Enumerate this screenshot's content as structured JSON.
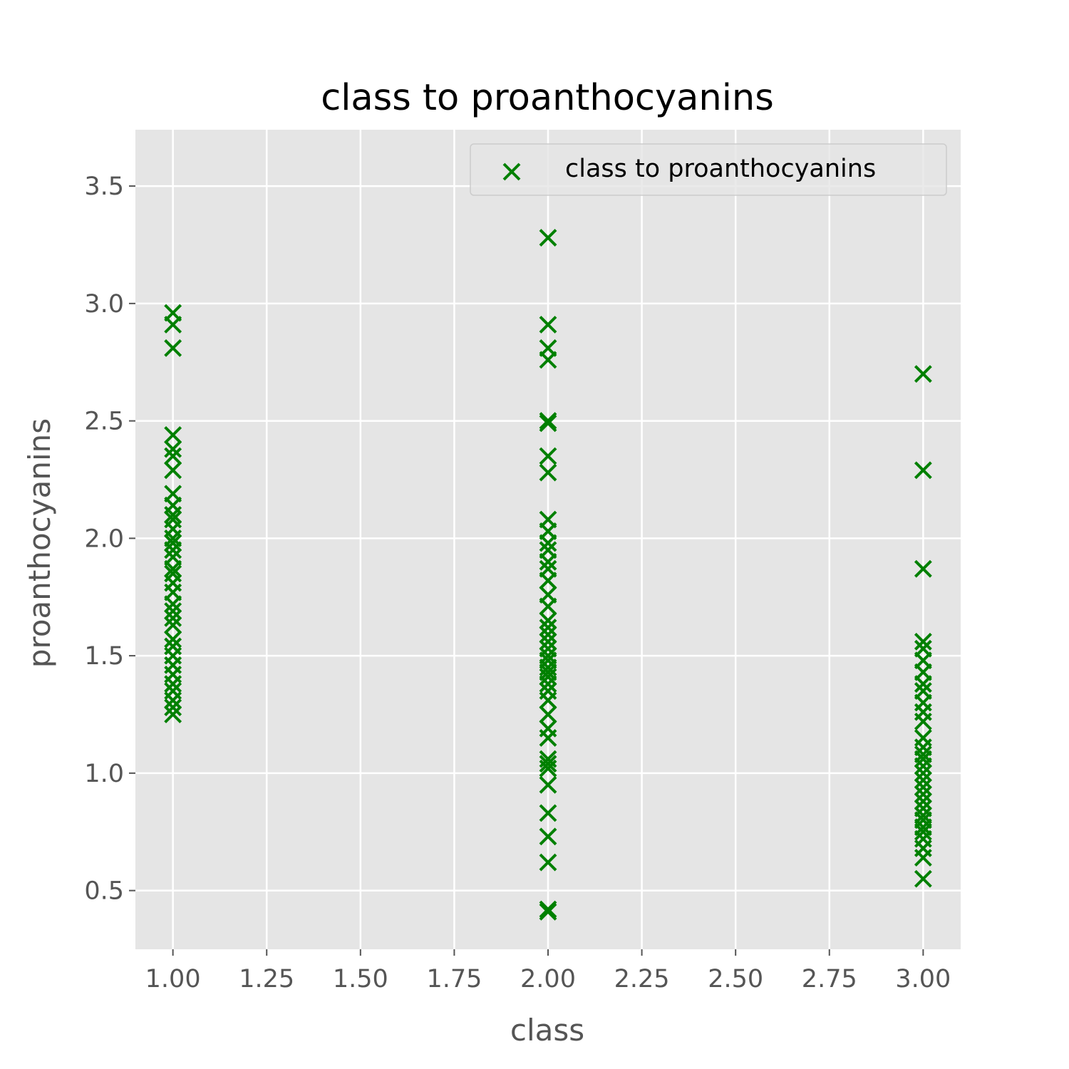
{
  "chart_data": {
    "type": "scatter",
    "title": "class to proanthocyanins",
    "xlabel": "class",
    "ylabel": "proanthocyanins",
    "xlim": [
      0.9,
      3.1
    ],
    "ylim": [
      0.25,
      3.74
    ],
    "xticks": [
      "1.00",
      "1.25",
      "1.50",
      "1.75",
      "2.00",
      "2.25",
      "2.50",
      "2.75",
      "3.00"
    ],
    "xtick_values": [
      1.0,
      1.25,
      1.5,
      1.75,
      2.0,
      2.25,
      2.5,
      2.75,
      3.0
    ],
    "yticks": [
      "0.5",
      "1.0",
      "1.5",
      "2.0",
      "2.5",
      "3.0",
      "3.5"
    ],
    "ytick_values": [
      0.5,
      1.0,
      1.5,
      2.0,
      2.5,
      3.0,
      3.5
    ],
    "grid": true,
    "background": "#e5e5e5",
    "marker": "x",
    "marker_color": "#008000",
    "legend": {
      "position": "top-right",
      "entries": [
        "class to proanthocyanins"
      ]
    },
    "series": [
      {
        "name": "class to proanthocyanins",
        "points": [
          [
            1,
            2.96
          ],
          [
            1,
            2.91
          ],
          [
            1,
            2.81
          ],
          [
            1,
            2.44
          ],
          [
            1,
            2.38
          ],
          [
            1,
            2.35
          ],
          [
            1,
            2.29
          ],
          [
            1,
            2.19
          ],
          [
            1,
            2.14
          ],
          [
            1,
            2.1
          ],
          [
            1,
            2.08
          ],
          [
            1,
            2.04
          ],
          [
            1,
            2.0
          ],
          [
            1,
            1.98
          ],
          [
            1,
            1.95
          ],
          [
            1,
            1.92
          ],
          [
            1,
            1.87
          ],
          [
            1,
            1.85
          ],
          [
            1,
            1.81
          ],
          [
            1,
            1.77
          ],
          [
            1,
            1.72
          ],
          [
            1,
            1.69
          ],
          [
            1,
            1.66
          ],
          [
            1,
            1.63
          ],
          [
            1,
            1.57
          ],
          [
            1,
            1.54
          ],
          [
            1,
            1.5
          ],
          [
            1,
            1.46
          ],
          [
            1,
            1.42
          ],
          [
            1,
            1.38
          ],
          [
            1,
            1.35
          ],
          [
            1,
            1.31
          ],
          [
            1,
            1.28
          ],
          [
            1,
            1.25
          ],
          [
            2,
            3.28
          ],
          [
            2,
            2.91
          ],
          [
            2,
            2.81
          ],
          [
            2,
            2.76
          ],
          [
            2,
            2.5
          ],
          [
            2,
            2.49
          ],
          [
            2,
            2.35
          ],
          [
            2,
            2.28
          ],
          [
            2,
            2.08
          ],
          [
            2,
            2.03
          ],
          [
            2,
            1.98
          ],
          [
            2,
            1.95
          ],
          [
            2,
            1.9
          ],
          [
            2,
            1.87
          ],
          [
            2,
            1.82
          ],
          [
            2,
            1.76
          ],
          [
            2,
            1.71
          ],
          [
            2,
            1.65
          ],
          [
            2,
            1.62
          ],
          [
            2,
            1.59
          ],
          [
            2,
            1.56
          ],
          [
            2,
            1.53
          ],
          [
            2,
            1.5
          ],
          [
            2,
            1.48
          ],
          [
            2,
            1.45
          ],
          [
            2,
            1.43
          ],
          [
            2,
            1.41
          ],
          [
            2,
            1.38
          ],
          [
            2,
            1.35
          ],
          [
            2,
            1.31
          ],
          [
            2,
            1.25
          ],
          [
            2,
            1.19
          ],
          [
            2,
            1.15
          ],
          [
            2,
            1.06
          ],
          [
            2,
            1.04
          ],
          [
            2,
            1.02
          ],
          [
            2,
            0.95
          ],
          [
            2,
            0.83
          ],
          [
            2,
            0.73
          ],
          [
            2,
            0.62
          ],
          [
            2,
            0.42
          ],
          [
            2,
            0.41
          ],
          [
            3,
            2.7
          ],
          [
            3,
            2.29
          ],
          [
            3,
            1.87
          ],
          [
            3,
            1.56
          ],
          [
            3,
            1.53
          ],
          [
            3,
            1.48
          ],
          [
            3,
            1.43
          ],
          [
            3,
            1.38
          ],
          [
            3,
            1.35
          ],
          [
            3,
            1.3
          ],
          [
            3,
            1.26
          ],
          [
            3,
            1.22
          ],
          [
            3,
            1.15
          ],
          [
            3,
            1.11
          ],
          [
            3,
            1.08
          ],
          [
            3,
            1.06
          ],
          [
            3,
            1.03
          ],
          [
            3,
            1.0
          ],
          [
            3,
            0.97
          ],
          [
            3,
            0.94
          ],
          [
            3,
            0.91
          ],
          [
            3,
            0.88
          ],
          [
            3,
            0.85
          ],
          [
            3,
            0.82
          ],
          [
            3,
            0.8
          ],
          [
            3,
            0.77
          ],
          [
            3,
            0.75
          ],
          [
            3,
            0.72
          ],
          [
            3,
            0.68
          ],
          [
            3,
            0.64
          ],
          [
            3,
            0.55
          ]
        ]
      }
    ]
  }
}
